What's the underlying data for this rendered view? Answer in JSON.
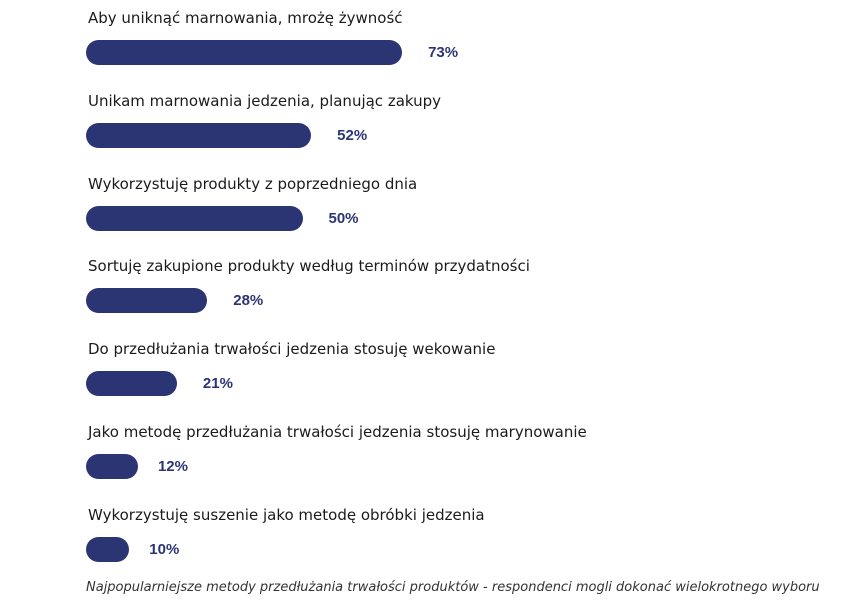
{
  "chart_data": {
    "type": "bar",
    "orientation": "horizontal",
    "categories": [
      "Aby uniknąć marnowania, mrożę żywność",
      "Unikam marnowania jedzenia, planując zakupy",
      "Wykorzystuję produkty z poprzedniego dnia",
      "Sortuję zakupione produkty według terminów przydatności",
      "Do przedłużania trwałości jedzenia stosuję wekowanie",
      "Jako metodę przedłużania trwałości jedzenia stosuję marynowanie",
      "Wykorzystuję suszenie jako metodę obróbki jedzenia"
    ],
    "values": [
      73,
      52,
      50,
      28,
      21,
      12,
      10
    ],
    "value_labels": [
      "73%",
      "52%",
      "50%",
      "28%",
      "21%",
      "12%",
      "10%"
    ],
    "unit": "%",
    "xlim": [
      0,
      100
    ],
    "grid": false,
    "legend": "none",
    "bar_color": "#2c3574",
    "caption": "Najpopularniejsze metody przedłużania trwałości produktów  - respondenci mogli dokonać wielokrotnego wyboru"
  }
}
